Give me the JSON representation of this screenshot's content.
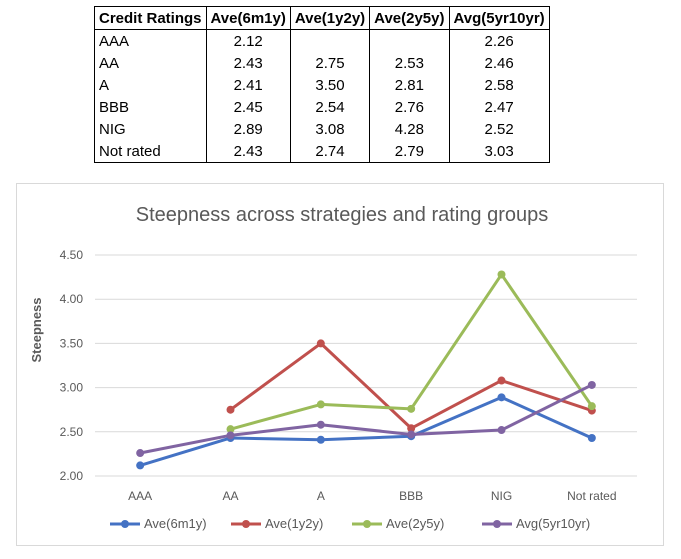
{
  "table": {
    "headers": [
      "Credit Ratings",
      "Ave(6m1y)",
      "Ave(1y2y)",
      "Ave(2y5y)",
      "Avg(5yr10yr)"
    ],
    "rows": [
      [
        "AAA",
        "2.12",
        "",
        "",
        "2.26"
      ],
      [
        "AA",
        "2.43",
        "2.75",
        "2.53",
        "2.46"
      ],
      [
        "A",
        "2.41",
        "3.50",
        "2.81",
        "2.58"
      ],
      [
        "BBB",
        "2.45",
        "2.54",
        "2.76",
        "2.47"
      ],
      [
        "NIG",
        "2.89",
        "3.08",
        "4.28",
        "2.52"
      ],
      [
        "Not rated",
        "2.43",
        "2.74",
        "2.79",
        "3.03"
      ]
    ]
  },
  "chart_data": {
    "type": "line",
    "title": "Steepness across strategies and rating groups",
    "xlabel": "",
    "ylabel": "Steepness",
    "categories": [
      "AAA",
      "AA",
      "A",
      "BBB",
      "NIG",
      "Not rated"
    ],
    "ylim": [
      2.0,
      4.5
    ],
    "yticks": [
      2.0,
      2.5,
      3.0,
      3.5,
      4.0,
      4.5
    ],
    "ytick_labels": [
      "2.00",
      "2.50",
      "3.00",
      "3.50",
      "4.00",
      "4.50"
    ],
    "grid": true,
    "legend": "bottom",
    "series": [
      {
        "name": "Ave(6m1y)",
        "color": "#4472c4",
        "values": [
          2.12,
          2.43,
          2.41,
          2.45,
          2.89,
          2.43
        ]
      },
      {
        "name": "Ave(1y2y)",
        "color": "#c0504d",
        "values": [
          null,
          2.75,
          3.5,
          2.54,
          3.08,
          2.74
        ]
      },
      {
        "name": "Ave(2y5y)",
        "color": "#9bbb59",
        "values": [
          null,
          2.53,
          2.81,
          2.76,
          4.28,
          2.79
        ]
      },
      {
        "name": "Avg(5yr10yr)",
        "color": "#8064a2",
        "values": [
          2.26,
          2.46,
          2.58,
          2.47,
          2.52,
          3.03
        ]
      }
    ]
  }
}
